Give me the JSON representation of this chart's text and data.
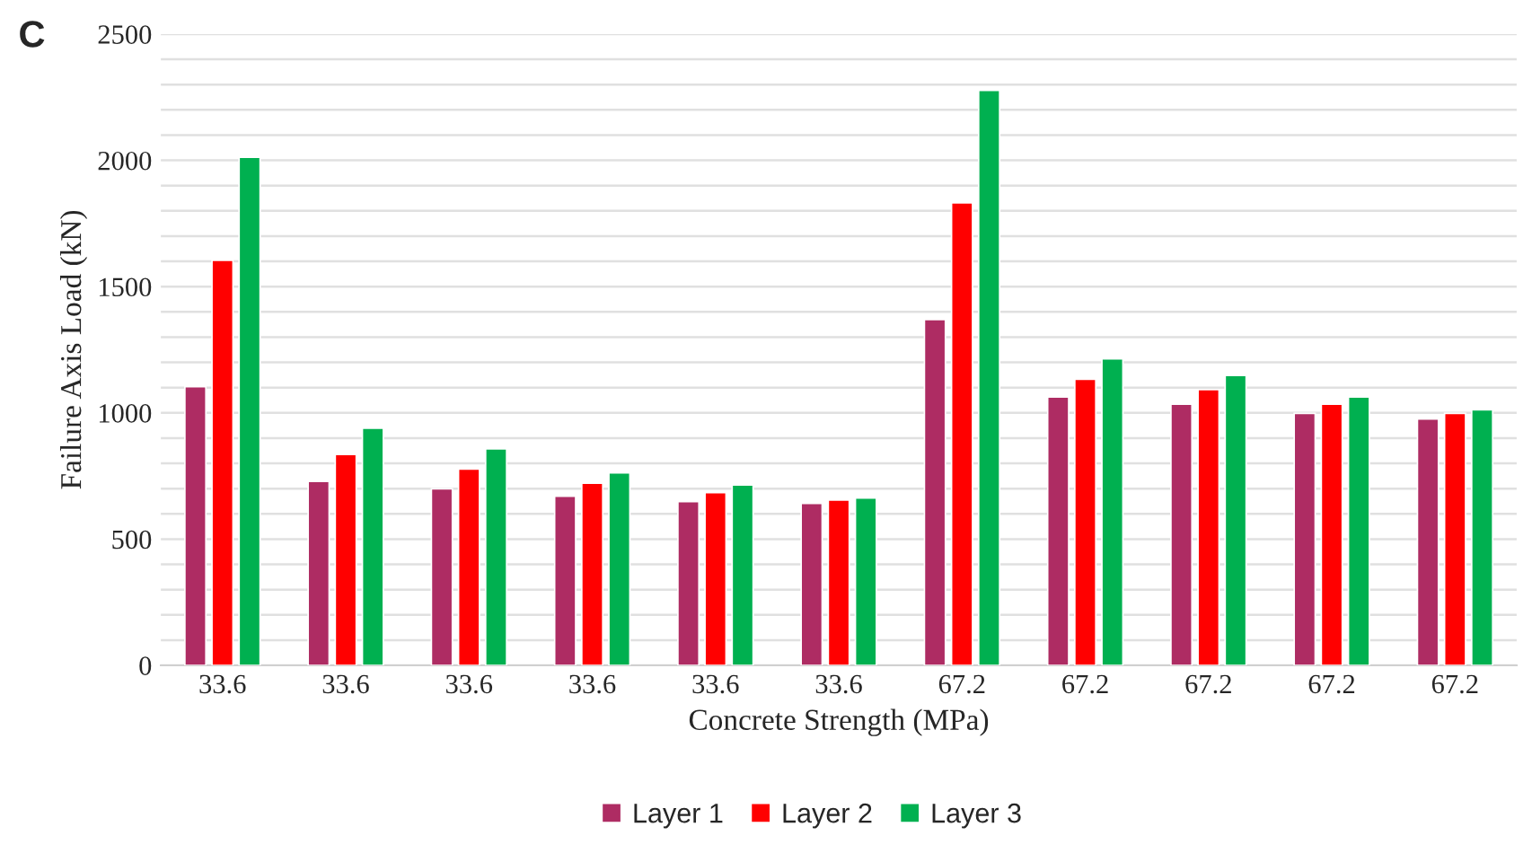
{
  "chart_data": {
    "type": "bar",
    "xlabel": "Concrete Strength (MPa)",
    "ylabel": "Failure Axis Load (kN)",
    "annotations": [
      "C"
    ],
    "categories": [
      "33.6",
      "33.6",
      "33.6",
      "33.6",
      "33.6",
      "33.6",
      "67.2",
      "67.2",
      "67.2",
      "67.2",
      "67.2"
    ],
    "series": [
      {
        "name": "Layer 1",
        "color": "#ae2c63",
        "values": [
          1104,
          728,
          699,
          670,
          648,
          641,
          1369,
          1063,
          1034,
          998,
          976
        ]
      },
      {
        "name": "Layer 2",
        "color": "#ff0000",
        "values": [
          1604,
          835,
          777,
          721,
          684,
          655,
          1832,
          1133,
          1092,
          1034,
          998
        ]
      },
      {
        "name": "Layer 3",
        "color": "#00b050",
        "values": [
          2012,
          939,
          857,
          762,
          714,
          663,
          2277,
          1214,
          1148,
          1063,
          1012
        ]
      }
    ],
    "ylim": [
      0,
      2500
    ],
    "yticks": [
      0,
      {
        "value": 100,
        "label": null
      },
      {
        "value": 200,
        "label": null
      },
      {
        "value": 300,
        "label": null
      },
      {
        "value": 400,
        "label": null
      },
      500,
      {
        "value": 600,
        "label": null
      },
      {
        "value": 700,
        "label": null
      },
      {
        "value": 800,
        "label": null
      },
      {
        "value": 900,
        "label": null
      },
      1000,
      {
        "value": 1100,
        "label": null
      },
      {
        "value": 1200,
        "label": null
      },
      {
        "value": 1300,
        "label": null
      },
      {
        "value": 1400,
        "label": null
      },
      1500,
      {
        "value": 1600,
        "label": null
      },
      {
        "value": 1700,
        "label": null
      },
      {
        "value": 1800,
        "label": null
      },
      {
        "value": 1900,
        "label": null
      },
      2000,
      {
        "value": 2100,
        "label": null
      },
      {
        "value": 2200,
        "label": null
      },
      {
        "value": 2300,
        "label": null
      },
      {
        "value": 2400,
        "label": null
      },
      2500
    ],
    "grid": "y",
    "legend": "bottom"
  }
}
